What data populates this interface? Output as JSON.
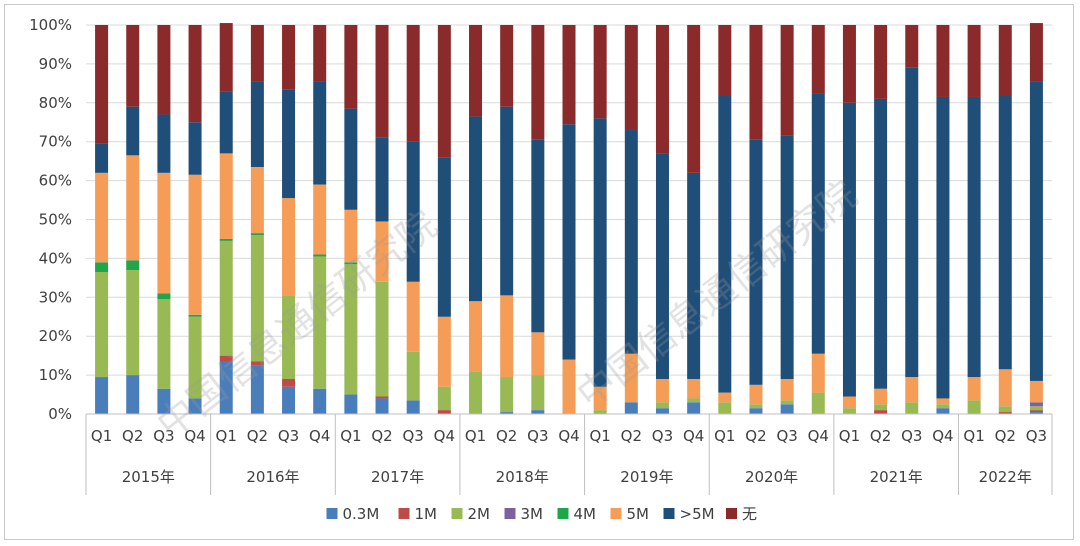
{
  "chart_data": {
    "type": "bar",
    "stacked": true,
    "normalized": true,
    "title": "",
    "xlabel": "",
    "ylabel": "",
    "ylim": [
      0,
      100
    ],
    "y_ticks": [
      "0%",
      "10%",
      "20%",
      "30%",
      "40%",
      "50%",
      "60%",
      "70%",
      "80%",
      "90%",
      "100%"
    ],
    "quarters": [
      "Q1",
      "Q2",
      "Q3",
      "Q4",
      "Q1",
      "Q2",
      "Q3",
      "Q4",
      "Q1",
      "Q2",
      "Q3",
      "Q4",
      "Q1",
      "Q2",
      "Q3",
      "Q4",
      "Q1",
      "Q2",
      "Q3",
      "Q4",
      "Q1",
      "Q2",
      "Q3",
      "Q4",
      "Q1",
      "Q2",
      "Q3",
      "Q4",
      "Q1",
      "Q2",
      "Q3"
    ],
    "years": [
      {
        "label": "2015年",
        "count": 4
      },
      {
        "label": "2016年",
        "count": 4
      },
      {
        "label": "2017年",
        "count": 4
      },
      {
        "label": "2018年",
        "count": 4
      },
      {
        "label": "2019年",
        "count": 4
      },
      {
        "label": "2020年",
        "count": 4
      },
      {
        "label": "2021年",
        "count": 4
      },
      {
        "label": "2022年",
        "count": 3
      }
    ],
    "legend_position": "bottom",
    "series": [
      {
        "name": "0.3M",
        "color": "#4a7ebb",
        "values": [
          9.5,
          10,
          6.5,
          4,
          13.5,
          12.5,
          7,
          6.5,
          5,
          4,
          3.5,
          0,
          0,
          0.5,
          1,
          0,
          0,
          3,
          1.5,
          3,
          0,
          1.5,
          2.5,
          0,
          0,
          0,
          0,
          1.5,
          0,
          0,
          0.5
        ]
      },
      {
        "name": "1M",
        "color": "#be4b48",
        "values": [
          0,
          0,
          0,
          0,
          1.5,
          1,
          2,
          0,
          0,
          0.5,
          0,
          1,
          0,
          0,
          0,
          0,
          0,
          0,
          0,
          0,
          0,
          0,
          0,
          0,
          0,
          1,
          0,
          0,
          0,
          0.5,
          0.5
        ]
      },
      {
        "name": "2M",
        "color": "#98b954",
        "values": [
          27,
          27,
          23,
          21,
          29.5,
          32.5,
          21.5,
          34,
          33.5,
          29.5,
          12.5,
          6,
          11,
          9,
          9,
          0,
          1,
          0,
          1.5,
          1,
          3,
          1,
          1,
          5.5,
          1.5,
          1.5,
          3,
          1,
          3.5,
          1.5,
          1
        ]
      },
      {
        "name": "3M",
        "color": "#7d60a0",
        "values": [
          0,
          0,
          0,
          0,
          0,
          0,
          0,
          0,
          0,
          0,
          0,
          0,
          0,
          0,
          0,
          0,
          0,
          0,
          0,
          0,
          0,
          0,
          0,
          0,
          0,
          0,
          0,
          0,
          0,
          0,
          1
        ]
      },
      {
        "name": "4M",
        "color": "#1fa64a",
        "values": [
          2.5,
          2.5,
          1.5,
          0.5,
          0.5,
          0.5,
          0,
          0.5,
          0.5,
          0,
          0,
          0,
          0,
          0,
          0,
          0,
          0,
          0,
          0,
          0,
          0,
          0,
          0,
          0,
          0,
          0,
          0,
          0,
          0,
          0,
          0
        ]
      },
      {
        "name": "5M",
        "color": "#f59d56",
        "values": [
          23,
          27,
          31,
          36,
          22,
          17,
          25,
          18,
          13.5,
          15.5,
          18,
          18,
          18,
          21,
          11,
          14,
          6,
          12.5,
          6,
          5,
          2.5,
          5,
          5.5,
          10,
          3,
          4,
          6.5,
          1.5,
          6,
          9.5,
          5.5
        ]
      },
      {
        "name": ">5M",
        "color": "#1f4e79",
        "values": [
          7.5,
          12.5,
          15,
          13.5,
          16,
          22,
          28,
          26.5,
          26,
          21.5,
          36,
          41,
          47.5,
          48.5,
          49.5,
          60.5,
          69,
          57.5,
          58,
          53,
          76.5,
          63,
          62.5,
          67,
          75.5,
          74.5,
          79.5,
          77.5,
          72,
          70.5,
          77
        ]
      },
      {
        "name": "无",
        "color": "#8a2a2a",
        "values": [
          30.5,
          21,
          23,
          25,
          17.5,
          14.5,
          16.5,
          14.5,
          21.5,
          29,
          30,
          34,
          23.5,
          21,
          29.5,
          25.5,
          24,
          27,
          33,
          38,
          18,
          29.5,
          28.5,
          17.5,
          20,
          19,
          11,
          18.5,
          18.5,
          18,
          15
        ]
      }
    ]
  },
  "watermark": "中国信息通信研究院"
}
